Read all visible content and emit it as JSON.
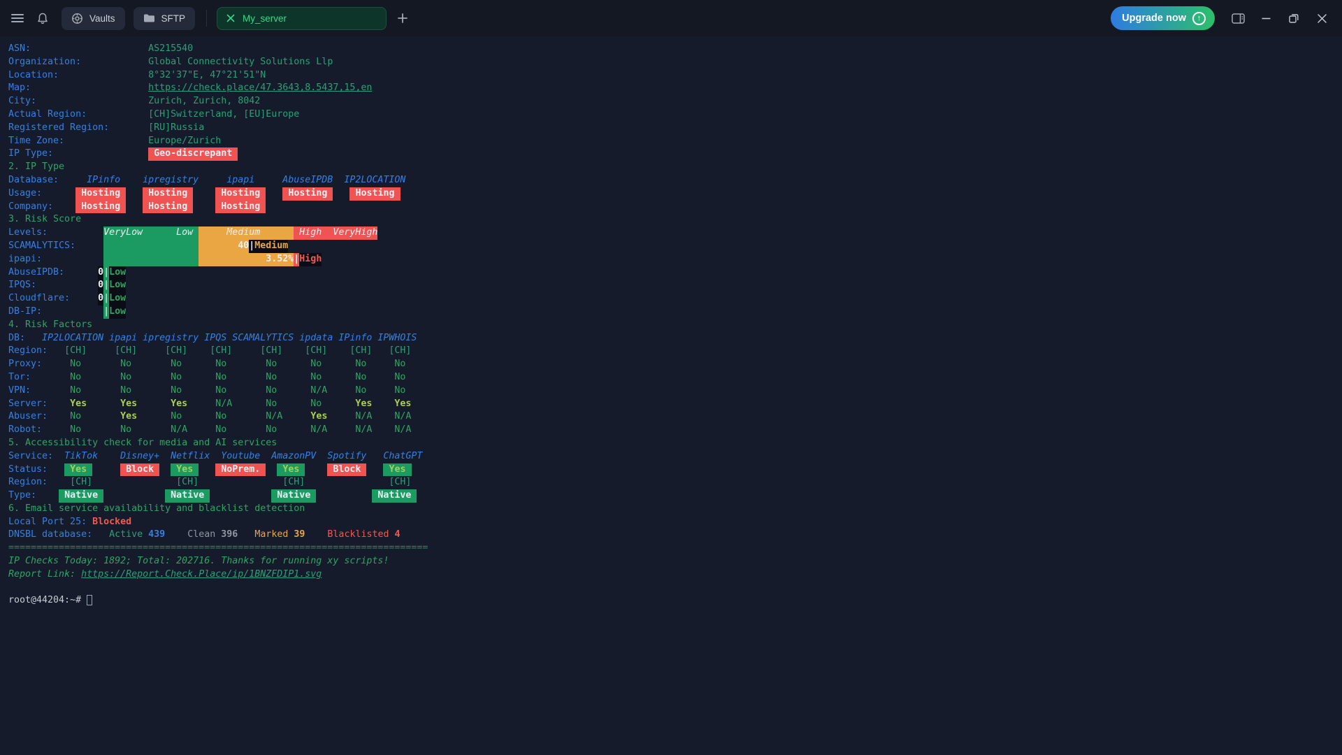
{
  "titlebar": {
    "vaults_label": "Vaults",
    "sftp_label": "SFTP",
    "active_tab_label": "My_server",
    "upgrade_label": "Upgrade now",
    "upgrade_arrow": "↑"
  },
  "terminal": {
    "lines": [
      [
        {
          "t": "ASN:                     ",
          "c": "cB"
        },
        {
          "t": "AS215540",
          "c": "cT"
        }
      ],
      [
        {
          "t": "Organization:            ",
          "c": "cB"
        },
        {
          "t": "Global Connectivity Solutions Llp",
          "c": "cT"
        }
      ],
      [
        {
          "t": "Location:                ",
          "c": "cB"
        },
        {
          "t": "8°32'37\"E, 47°21'51\"N",
          "c": "cT"
        }
      ],
      [
        {
          "t": "Map:                     ",
          "c": "cB"
        },
        {
          "t": "https://check.place/47.3643,8.5437,15,en",
          "c": "cT und",
          "n": "map-link",
          "i": true
        }
      ],
      [
        {
          "t": "City:                    ",
          "c": "cB"
        },
        {
          "t": "Zurich, Zurich, 8042",
          "c": "cT"
        }
      ],
      [
        {
          "t": "Actual Region:           ",
          "c": "cB"
        },
        {
          "t": "[CH]Switzerland, [EU]Europe",
          "c": "cT"
        }
      ],
      [
        {
          "t": "Registered Region:       ",
          "c": "cB"
        },
        {
          "t": "[RU]Russia",
          "c": "cT"
        }
      ],
      [
        {
          "t": "Time Zone:               ",
          "c": "cB"
        },
        {
          "t": "Europe/Zurich",
          "c": "cT"
        }
      ],
      [
        {
          "t": "IP Type:                 ",
          "c": "cB"
        },
        {
          "t": " Geo-discrepant ",
          "c": "bgR cWt bold",
          "n": "geo-discrepant-badge"
        }
      ],
      [
        {
          "t": "2. IP Type",
          "c": "cG"
        }
      ],
      [
        {
          "t": "Database:     ",
          "c": "cB"
        },
        {
          "t": "IPinfo    ipregistry     ipapi     AbuseIPDB  IP2LOCATION",
          "c": "cB ital"
        }
      ],
      [
        {
          "t": "Usage:      ",
          "c": "cB"
        },
        {
          "t": " Hosting ",
          "c": "bgR cWt bold",
          "n": "hosting-badge"
        },
        {
          "t": "   "
        },
        {
          "t": " Hosting ",
          "c": "bgR cWt bold",
          "n": "hosting-badge"
        },
        {
          "t": "    "
        },
        {
          "t": " Hosting ",
          "c": "bgR cWt bold",
          "n": "hosting-badge"
        },
        {
          "t": "   "
        },
        {
          "t": " Hosting ",
          "c": "bgR cWt bold",
          "n": "hosting-badge"
        },
        {
          "t": "   "
        },
        {
          "t": " Hosting ",
          "c": "bgR cWt bold",
          "n": "hosting-badge"
        }
      ],
      [
        {
          "t": "Company:    ",
          "c": "cB"
        },
        {
          "t": " Hosting ",
          "c": "bgR cWt bold",
          "n": "hosting-badge"
        },
        {
          "t": "   "
        },
        {
          "t": " Hosting ",
          "c": "bgR cWt bold",
          "n": "hosting-badge"
        },
        {
          "t": "    "
        },
        {
          "t": " Hosting ",
          "c": "bgR cWt bold",
          "n": "hosting-badge"
        }
      ],
      [
        {
          "t": "3. Risk Score",
          "c": "cG"
        }
      ],
      [
        {
          "t": "Levels:          ",
          "c": "cB"
        },
        {
          "t": "VeryLow      Low ",
          "c": "bgG cWt ital",
          "n": "risk-band-low"
        },
        {
          "t": "     Medium      ",
          "c": "bgO cWt ital",
          "n": "risk-band-medium"
        },
        {
          "t": " High  VeryHigh",
          "c": "bgR cWt ital",
          "n": "risk-band-high"
        }
      ],
      [
        {
          "t": "SCAMALYTICS:     ",
          "c": "cB"
        },
        {
          "t": "                 ",
          "c": "bgG"
        },
        {
          "t": "       40",
          "c": "bgO cWt bold",
          "n": "scamalytics-score"
        },
        {
          "t": "|",
          "c": "bgD cWt bold"
        },
        {
          "t": "Medium",
          "c": "bgD cO bold"
        }
      ],
      [
        {
          "t": "ipapi:           ",
          "c": "cB"
        },
        {
          "t": "                 ",
          "c": "bgG"
        },
        {
          "t": "            3.52%",
          "c": "bgO cWt bold",
          "n": "ipapi-score"
        },
        {
          "t": "|",
          "c": "bgR cWt bold"
        },
        {
          "t": "High",
          "c": "bgD cR bold"
        }
      ],
      [
        {
          "t": "AbuseIPDB:      ",
          "c": "cB"
        },
        {
          "t": "0",
          "c": "bgD cWt bold",
          "n": "abuseipdb-score"
        },
        {
          "t": "|",
          "c": "bgG cWt"
        },
        {
          "t": "Low",
          "c": "bgD cG bold"
        }
      ],
      [
        {
          "t": "IPQS:           ",
          "c": "cB"
        },
        {
          "t": "0",
          "c": "bgD cWt bold",
          "n": "ipqs-score"
        },
        {
          "t": "|",
          "c": "bgG cWt"
        },
        {
          "t": "Low",
          "c": "bgD cG bold"
        }
      ],
      [
        {
          "t": "Cloudflare:     ",
          "c": "cB"
        },
        {
          "t": "0",
          "c": "bgD cWt bold",
          "n": "cloudflare-score"
        },
        {
          "t": "|",
          "c": "bgG cWt"
        },
        {
          "t": "Low",
          "c": "bgD cG bold"
        }
      ],
      [
        {
          "t": "DB-IP:           ",
          "c": "cB"
        },
        {
          "t": "|",
          "c": "bgG cWt"
        },
        {
          "t": "Low",
          "c": "bgD cG bold"
        }
      ],
      [
        {
          "t": "4. Risk Factors",
          "c": "cG"
        }
      ],
      [
        {
          "t": "DB:   ",
          "c": "cB"
        },
        {
          "t": "IP2LOCATION ipapi ipregistry IPQS SCAMALYTICS ipdata IPinfo IPWHOIS",
          "c": "cB ital"
        }
      ],
      [
        {
          "t": "Region:   ",
          "c": "cB"
        },
        {
          "t": "[CH]     [CH]     [CH]    [CH]     [CH]    [CH]    [CH]   [CH]",
          "c": "cT"
        }
      ],
      [
        {
          "t": "Proxy:     ",
          "c": "cB"
        },
        {
          "t": "No       No       No      No       No      No      No     No",
          "c": "cG"
        }
      ],
      [
        {
          "t": "Tor:       ",
          "c": "cB"
        },
        {
          "t": "No       No       No      No       No      No      No     No",
          "c": "cG"
        }
      ],
      [
        {
          "t": "VPN:       ",
          "c": "cB"
        },
        {
          "t": "No       No       No      No       No      N/A     No     No",
          "c": "cG"
        }
      ],
      [
        {
          "t": "Server:    ",
          "c": "cB"
        },
        {
          "t": "Yes      Yes      Yes",
          "c": "cY bold"
        },
        {
          "t": "     N/A      No      No      ",
          "c": "cG"
        },
        {
          "t": "Yes    Yes",
          "c": "cY bold"
        }
      ],
      [
        {
          "t": "Abuser:    ",
          "c": "cB"
        },
        {
          "t": "No       ",
          "c": "cG"
        },
        {
          "t": "Yes",
          "c": "cY bold"
        },
        {
          "t": "      No      No       N/A     ",
          "c": "cG"
        },
        {
          "t": "Yes",
          "c": "cY bold"
        },
        {
          "t": "     N/A    N/A",
          "c": "cG"
        }
      ],
      [
        {
          "t": "Robot:     ",
          "c": "cB"
        },
        {
          "t": "No       No       N/A     No       No      N/A     N/A    N/A",
          "c": "cG"
        }
      ],
      [
        {
          "t": "5. Accessibility check for media and AI services",
          "c": "cG"
        }
      ],
      [
        {
          "t": "Service:  ",
          "c": "cB"
        },
        {
          "t": "TikTok    Disney+  Netflix  Youtube  AmazonPV  Spotify   ChatGPT",
          "c": "cB ital"
        }
      ],
      [
        {
          "t": "Status:   ",
          "c": "cB"
        },
        {
          "t": " Yes ",
          "c": "bgG cY bold",
          "n": "status-yes-badge"
        },
        {
          "t": "     "
        },
        {
          "t": " Block ",
          "c": "bgR cWt bold",
          "n": "status-block-badge"
        },
        {
          "t": "  "
        },
        {
          "t": " Yes ",
          "c": "bgG cY bold",
          "n": "status-yes-badge"
        },
        {
          "t": "   "
        },
        {
          "t": " NoPrem. ",
          "c": "bgR cWt bold",
          "n": "status-noprem-badge"
        },
        {
          "t": "  "
        },
        {
          "t": " Yes ",
          "c": "bgG cY bold",
          "n": "status-yes-badge"
        },
        {
          "t": "    "
        },
        {
          "t": " Block ",
          "c": "bgR cWt bold",
          "n": "status-block-badge"
        },
        {
          "t": "   "
        },
        {
          "t": " Yes ",
          "c": "bgG cY bold",
          "n": "status-yes-badge"
        }
      ],
      [
        {
          "t": "Region:    ",
          "c": "cB"
        },
        {
          "t": "[CH]               [CH]               [CH]               [CH]",
          "c": "cT"
        }
      ],
      [
        {
          "t": "Type:    ",
          "c": "cB"
        },
        {
          "t": " Native ",
          "c": "bgG cWt bold",
          "n": "type-native-badge"
        },
        {
          "t": "           "
        },
        {
          "t": " Native ",
          "c": "bgG cWt bold",
          "n": "type-native-badge"
        },
        {
          "t": "           "
        },
        {
          "t": " Native ",
          "c": "bgG cWt bold",
          "n": "type-native-badge"
        },
        {
          "t": "          "
        },
        {
          "t": " Native ",
          "c": "bgG cWt bold",
          "n": "type-native-badge"
        }
      ],
      [
        {
          "t": "6. Email service availability and blacklist detection",
          "c": "cG"
        }
      ],
      [
        {
          "t": "Local Port 25: ",
          "c": "cB"
        },
        {
          "t": "Blocked",
          "c": "cR bold",
          "n": "port25-status"
        }
      ],
      [
        {
          "t": "DNSBL database:   ",
          "c": "cB"
        },
        {
          "t": "Active ",
          "c": "cT"
        },
        {
          "t": "439",
          "c": "cB bold",
          "n": "dnsbl-active-count"
        },
        {
          "t": "    "
        },
        {
          "t": "Clean ",
          "c": "cGy"
        },
        {
          "t": "396",
          "c": "cGy bold",
          "n": "dnsbl-clean-count"
        },
        {
          "t": "   "
        },
        {
          "t": "Marked ",
          "c": "cO"
        },
        {
          "t": "39",
          "c": "cO bold",
          "n": "dnsbl-marked-count"
        },
        {
          "t": "    "
        },
        {
          "t": "Blacklisted ",
          "c": "cR"
        },
        {
          "t": "4",
          "c": "cR bold",
          "n": "dnsbl-blacklisted-count"
        }
      ],
      [
        {
          "t": "===========================================================================",
          "c": "cSep"
        }
      ],
      [
        {
          "t": "IP Checks Today: 1892; Total: 202716. Thanks for running xy scripts!",
          "c": "cG ital"
        }
      ],
      [
        {
          "t": "Report Link: ",
          "c": "cG ital"
        },
        {
          "t": "https://Report.Check.Place/ip/1BNZFDIP1.svg",
          "c": "cT und ital",
          "n": "report-link",
          "i": true
        }
      ],
      [
        {
          "t": " "
        }
      ],
      [
        {
          "t": "root@44204:~# ",
          "c": "cP",
          "n": "shell-prompt"
        },
        {
          "t": "",
          "c": "cursor",
          "n": "terminal-cursor"
        }
      ]
    ]
  }
}
